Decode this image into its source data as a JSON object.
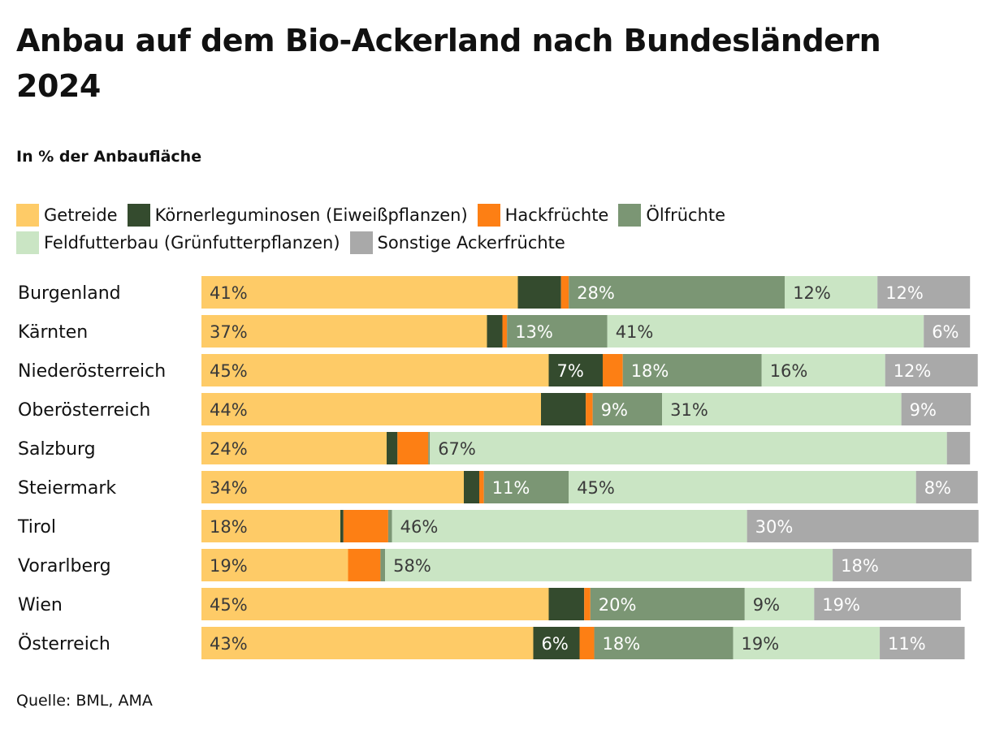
{
  "title": "Anbau auf dem Bio-Ackerland nach Bundesländern 2024",
  "subtitle": "In % der Anbaufläche",
  "source": "Quelle: BML, AMA",
  "legend": {
    "row1": [
      {
        "label": "Getreide",
        "color": "#fecb67"
      },
      {
        "label": "Körnerleguminosen (Eiweißpflanzen)",
        "color": "#344b2e"
      },
      {
        "label": "Hackfrüchte",
        "color": "#fd7f14"
      },
      {
        "label": "Ölfrüchte",
        "color": "#7b9674"
      }
    ],
    "row2": [
      {
        "label": "Feldfutterbau (Grünfutterpflanzen)",
        "color": "#cae5c4"
      },
      {
        "label": "Sonstige Ackerfrüchte",
        "color": "#a9a9a9"
      }
    ]
  },
  "chart_data": {
    "type": "bar",
    "orientation": "horizontal",
    "stacked": true,
    "unit": "%",
    "xlim": [
      0,
      100
    ],
    "grid": false,
    "legend_position": "top",
    "categories": [
      "Burgenland",
      "Kärnten",
      "Niederösterreich",
      "Oberösterreich",
      "Salzburg",
      "Steiermark",
      "Tirol",
      "Vorarlberg",
      "Wien",
      "Österreich"
    ],
    "series": [
      {
        "name": "Getreide",
        "color": "#fecb67",
        "label_color": "#3a3a3a",
        "values": [
          41,
          37,
          45,
          44,
          24,
          34,
          18,
          19,
          45,
          43
        ],
        "labels": [
          "41%",
          "37%",
          "45%",
          "44%",
          "24%",
          "34%",
          "18%",
          "19%",
          "45%",
          "43%"
        ]
      },
      {
        "name": "Körnerleguminosen (Eiweißpflanzen)",
        "color": "#344b2e",
        "label_color": "#ffffff",
        "values": [
          5.6,
          2,
          7,
          5.8,
          1.4,
          2,
          0.4,
          0,
          4.6,
          6
        ],
        "labels": [
          "",
          "",
          "7%",
          "",
          "",
          "",
          "",
          "",
          "",
          "6%"
        ]
      },
      {
        "name": "Hackfrüchte",
        "color": "#fd7f14",
        "label_color": "#3a3a3a",
        "values": [
          1,
          0.6,
          2.6,
          0.9,
          4,
          0.6,
          5.8,
          4.2,
          0.8,
          1.9
        ],
        "labels": [
          "",
          "",
          "",
          "",
          "",
          "",
          "",
          "",
          "",
          ""
        ]
      },
      {
        "name": "Ölfrüchte",
        "color": "#7b9674",
        "label_color": "#ffffff",
        "values": [
          28,
          13,
          18,
          9,
          0.2,
          11,
          0.5,
          0.6,
          20,
          18
        ],
        "labels": [
          "28%",
          "13%",
          "18%",
          "9%",
          "",
          "11%",
          "",
          "",
          "20%",
          "18%"
        ]
      },
      {
        "name": "Feldfutterbau (Grünfutterpflanzen)",
        "color": "#cae5c4",
        "label_color": "#3a3a3a",
        "values": [
          12,
          41,
          16,
          31,
          67,
          45,
          46,
          58,
          9,
          19
        ],
        "labels": [
          "12%",
          "41%",
          "16%",
          "31%",
          "67%",
          "45%",
          "46%",
          "58%",
          "9%",
          "19%"
        ]
      },
      {
        "name": "Sonstige Ackerfrüchte",
        "color": "#a9a9a9",
        "label_color": "#ffffff",
        "values": [
          12,
          6,
          12,
          9,
          3,
          8,
          30,
          18,
          19,
          11
        ],
        "labels": [
          "12%",
          "6%",
          "12%",
          "9%",
          "",
          "8%",
          "30%",
          "18%",
          "19%",
          "11%"
        ]
      }
    ]
  }
}
